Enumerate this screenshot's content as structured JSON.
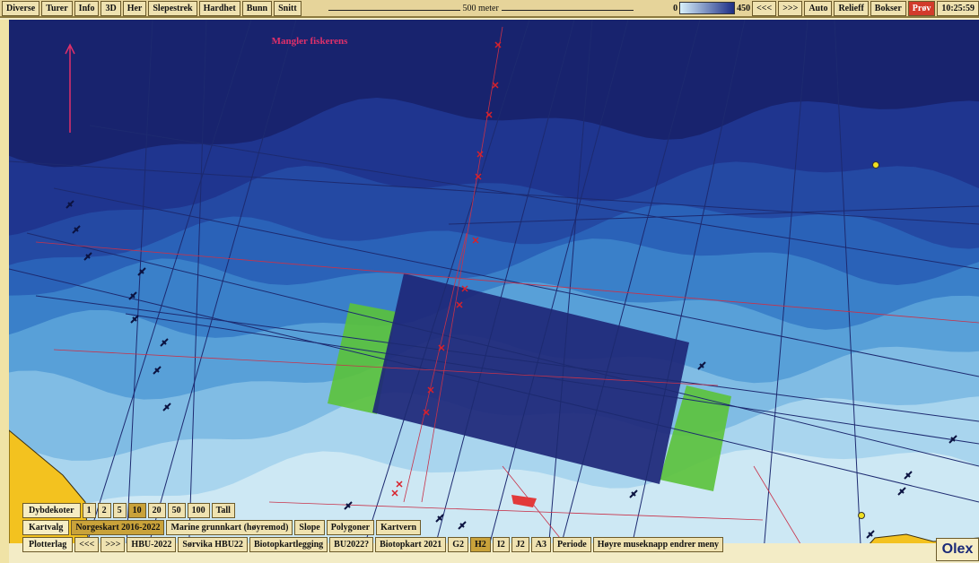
{
  "toolbar": {
    "left": [
      "Diverse",
      "Turer",
      "Info",
      "3D",
      "Her",
      "Slepestrek",
      "Hardhet",
      "Bunn",
      "Snitt"
    ],
    "scale": "500 meter",
    "depth_min": "0",
    "depth_max": "450",
    "right": [
      "<<<",
      ">>>",
      "Auto",
      "Relieff",
      "Bokser",
      "Prøv"
    ],
    "time": "10:25:59"
  },
  "map": {
    "label": "Mangler fiskerens"
  },
  "panels": {
    "depth": {
      "title": "Dybdekoter",
      "buttons": [
        "1",
        "2",
        "5",
        "10",
        "20",
        "50",
        "100",
        "Tall"
      ],
      "selected": 3
    },
    "chart": {
      "title": "Kartvalg",
      "buttons": [
        "Norgeskart 2016-2022",
        "Marine grunnkart (høyremod)",
        "Slope",
        "Polygoner",
        "Kartvern"
      ],
      "selected": 0
    },
    "plotter": {
      "title": "Plotterlag",
      "buttons": [
        "<<<",
        ">>>",
        "HBU-2022",
        "Sørvika HBU22",
        "Biotopkartlegging",
        "BU2022?",
        "Biotopkart 2021",
        "G2",
        "H2",
        "I2",
        "J2",
        "A3",
        "Periode",
        "Høyre museknapp endrer meny"
      ],
      "selected": 8
    }
  },
  "logo": "Olex"
}
